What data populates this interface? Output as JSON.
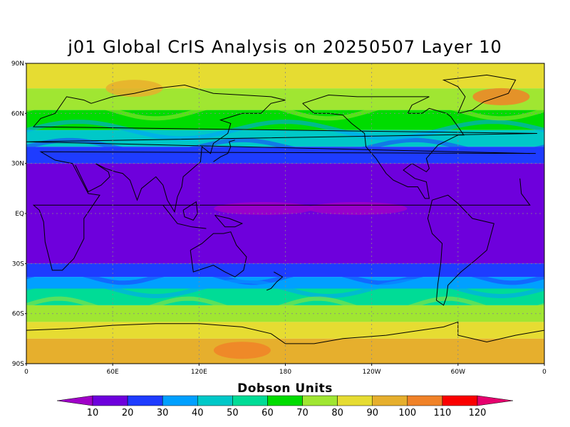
{
  "title": "j01 Global CrIS Analysis on 20250507 Layer 10",
  "lat_labels": [
    "90N",
    "60N",
    "30N",
    "EQ",
    "30S",
    "60S",
    "90S"
  ],
  "lon_labels": [
    "0",
    "60E",
    "120E",
    "180",
    "120W",
    "60W",
    "0"
  ],
  "colorbar": {
    "title": "Dobson Units",
    "tick_labels": [
      "10",
      "20",
      "30",
      "40",
      "50",
      "60",
      "70",
      "80",
      "90",
      "100",
      "110",
      "120"
    ],
    "colors": [
      "#a000c8",
      "#6e00dc",
      "#1e3cff",
      "#00a0ff",
      "#00c8c8",
      "#00dc96",
      "#00dc00",
      "#a0e632",
      "#e6dc32",
      "#e6af2d",
      "#f08228",
      "#fa0000",
      "#e6006e"
    ]
  },
  "map_data": {
    "projection": "cylindrical equidistant",
    "lat_range": [
      -90,
      90
    ],
    "lon_range": [
      0,
      360
    ],
    "grid": true,
    "zonal_bands": [
      {
        "lat": [
          75,
          90
        ],
        "value": 85
      },
      {
        "lat": [
          62,
          75
        ],
        "value": 75
      },
      {
        "lat": [
          50,
          62
        ],
        "value": 65
      },
      {
        "lat": [
          40,
          50
        ],
        "value": 45
      },
      {
        "lat": [
          30,
          40
        ],
        "value": 25
      },
      {
        "lat": [
          -30,
          30
        ],
        "value": 15
      },
      {
        "lat": [
          -38,
          -30
        ],
        "value": 25
      },
      {
        "lat": [
          -45,
          -38
        ],
        "value": 35
      },
      {
        "lat": [
          -55,
          -45
        ],
        "value": 55
      },
      {
        "lat": [
          -65,
          -55
        ],
        "value": 75
      },
      {
        "lat": [
          -75,
          -65
        ],
        "value": 85
      },
      {
        "lat": [
          -90,
          -75
        ],
        "value": 95
      }
    ],
    "anomalies": [
      {
        "lon": 330,
        "lat": 70,
        "value": 100
      },
      {
        "lon": 75,
        "lat": 75,
        "value": 95
      },
      {
        "lon": 165,
        "lat": 3,
        "value": 8
      },
      {
        "lon": 230,
        "lat": 3,
        "value": 8
      },
      {
        "lon": 150,
        "lat": -82,
        "value": 100
      }
    ]
  }
}
